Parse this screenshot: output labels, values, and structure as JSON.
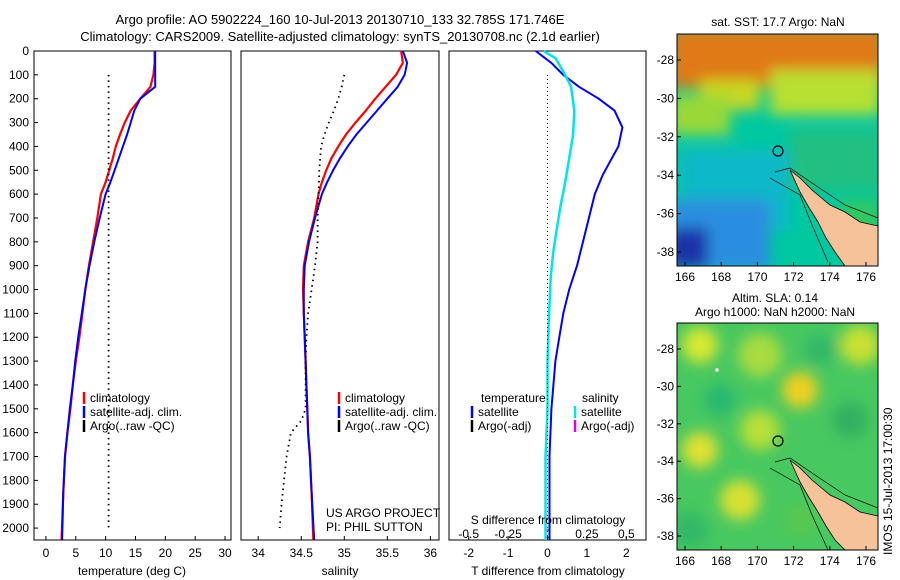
{
  "title_line1": "Argo profile: AO 5902224_160 10-Jul-2013 20130710_133 32.785S 171.746E",
  "title_line2": "Climatology: CARS2009. Satellite-adjusted climatology: synTS_20130708.nc (2.1d earlier)",
  "footer_text": "US ARGO PROJECT",
  "pi_text": "PI: PHIL SUTTON",
  "side_label": "IMOS 15-Jul-2013 17:00:30",
  "map_top_title": "sat. SST: 17.7 Argo: NaN",
  "map_bottom_title1": "Altim. SLA: 0.14",
  "map_bottom_title2": "Argo h1000: NaN h2000: NaN",
  "colors": {
    "climatology": "#ff0000",
    "satellite_adj": "#0000ff",
    "argo": "#000000",
    "salinity_sat": "#00e5e5",
    "salinity_argo": "#e000e0",
    "land": "#f5c29a"
  },
  "chart_data": [
    {
      "type": "line",
      "xlabel": "temperature (deg C)",
      "ylabel": "",
      "xlim": [
        -2,
        31
      ],
      "ylim": [
        2050,
        0
      ],
      "xticks": [
        0,
        5,
        10,
        15,
        20,
        25,
        30
      ],
      "yticks": [
        0,
        100,
        200,
        300,
        400,
        500,
        600,
        700,
        800,
        900,
        1000,
        1100,
        1200,
        1300,
        1400,
        1500,
        1600,
        1700,
        1800,
        1900,
        2000
      ],
      "legend": [
        "climatology",
        "satellite-adj. clim.",
        "Argo(..raw -QC)"
      ],
      "series": [
        {
          "name": "climatology",
          "x": [
            18.2,
            18.2,
            18.0,
            17.5,
            15.8,
            14.2,
            13.2,
            12.4,
            11.7,
            11.2,
            10.6,
            10.0,
            9.2,
            8.6,
            7.9,
            7.2,
            6.6,
            6.1,
            5.6,
            5.0,
            4.5,
            4.1,
            3.6,
            3.2,
            2.9,
            2.6
          ],
          "y": [
            0,
            50,
            100,
            150,
            200,
            250,
            300,
            350,
            400,
            450,
            500,
            550,
            600,
            700,
            800,
            900,
            1000,
            1100,
            1200,
            1300,
            1400,
            1500,
            1600,
            1700,
            1850,
            2050
          ]
        },
        {
          "name": "satellite-adj. clim.",
          "x": [
            18.3,
            18.3,
            18.3,
            18.3,
            15.8,
            14.8,
            14.2,
            13.6,
            12.9,
            12.2,
            11.5,
            10.8,
            10.0,
            9.0,
            8.1,
            7.3,
            6.6,
            6.0,
            5.4,
            4.9,
            4.5,
            4.0,
            3.6,
            3.2,
            2.9,
            2.7
          ],
          "y": [
            0,
            50,
            100,
            150,
            200,
            250,
            300,
            350,
            400,
            450,
            500,
            550,
            600,
            700,
            800,
            900,
            1000,
            1100,
            1200,
            1300,
            1400,
            1500,
            1600,
            1700,
            1850,
            2050
          ]
        },
        {
          "name": "Argo(..raw -QC)",
          "x": [
            10.5,
            10.5
          ],
          "y": [
            100,
            2000
          ]
        }
      ]
    },
    {
      "type": "line",
      "xlabel": "salinity",
      "ylabel": "",
      "xlim": [
        33.8,
        36.1
      ],
      "ylim": [
        2050,
        0
      ],
      "xticks": [
        34,
        34.5,
        35,
        35.5,
        36
      ],
      "legend": [
        "climatology",
        "satellite-adj. clim.",
        "Argo(..raw -QC)"
      ],
      "series": [
        {
          "name": "climatology",
          "x": [
            35.66,
            35.68,
            35.6,
            35.48,
            35.36,
            35.25,
            35.13,
            35.02,
            34.93,
            34.85,
            34.79,
            34.74,
            34.7,
            34.65,
            34.58,
            34.53,
            34.52,
            34.53,
            34.54,
            34.55,
            34.56,
            34.57,
            34.58,
            34.6,
            34.62,
            34.64
          ],
          "y": [
            0,
            50,
            100,
            150,
            200,
            250,
            300,
            350,
            400,
            450,
            500,
            550,
            600,
            700,
            800,
            900,
            1000,
            1100,
            1200,
            1300,
            1400,
            1500,
            1600,
            1700,
            1850,
            2050
          ]
        },
        {
          "name": "satellite-adj. clim.",
          "x": [
            35.68,
            35.73,
            35.7,
            35.62,
            35.5,
            35.38,
            35.26,
            35.14,
            35.04,
            34.95,
            34.87,
            34.8,
            34.74,
            34.66,
            34.59,
            34.54,
            34.53,
            34.53,
            34.54,
            34.55,
            34.56,
            34.57,
            34.58,
            34.6,
            34.62,
            34.65
          ],
          "y": [
            0,
            50,
            100,
            150,
            200,
            250,
            300,
            350,
            400,
            450,
            500,
            550,
            600,
            700,
            800,
            900,
            1000,
            1100,
            1200,
            1300,
            1400,
            1500,
            1600,
            1700,
            1850,
            2050
          ]
        },
        {
          "name": "Argo(..raw -QC)",
          "x": [
            35.0,
            34.97,
            34.93,
            34.88,
            34.82,
            34.77,
            34.73,
            34.71,
            34.7,
            34.69,
            34.69,
            34.66,
            34.62,
            34.58,
            34.56,
            34.55,
            34.55,
            34.5,
            34.38,
            34.33,
            34.3,
            34.27,
            34.25
          ],
          "y": [
            100,
            150,
            200,
            250,
            300,
            350,
            400,
            500,
            600,
            700,
            800,
            900,
            1000,
            1100,
            1200,
            1300,
            1500,
            1550,
            1600,
            1700,
            1800,
            1900,
            2000
          ]
        }
      ],
      "annotations": [
        "US ARGO PROJECT",
        "PI: PHIL SUTTON"
      ]
    },
    {
      "type": "line",
      "xlabel": "T difference from climatology",
      "xlabel_top": "S difference from climatology",
      "xlim": [
        -2.5,
        2.5
      ],
      "ylim": [
        2050,
        0
      ],
      "xticks": [
        -2,
        -1,
        0,
        1,
        2
      ],
      "xticks_top": [
        "-0.5",
        "-0.25",
        "0",
        "0.25",
        "0.5"
      ],
      "legend": {
        "temperature": [
          "satellite",
          "Argo(-adj)"
        ],
        "salinity": [
          "satellite",
          "Argo(-adj)"
        ]
      },
      "series": [
        {
          "name": "temperature satellite",
          "x": [
            -0.3,
            0.1,
            0.4,
            0.8,
            1.3,
            1.7,
            1.9,
            1.8,
            1.6,
            1.4,
            1.2,
            1.05,
            0.9,
            0.75,
            0.55,
            0.4,
            0.3,
            0.2,
            0.15,
            0.1,
            0.05,
            0.05,
            0.05
          ],
          "y": [
            0,
            50,
            100,
            150,
            200,
            250,
            320,
            400,
            460,
            520,
            600,
            700,
            800,
            900,
            1000,
            1100,
            1200,
            1300,
            1400,
            1500,
            1700,
            1900,
            2050
          ]
        },
        {
          "name": "salinity satellite",
          "x": [
            -0.1,
            0.2,
            0.38,
            0.6,
            0.68,
            0.65,
            0.55,
            0.45,
            0.33,
            0.23,
            0.14,
            0.08,
            0.04,
            0.0,
            0.0,
            -0.05,
            -0.05
          ],
          "y": [
            0,
            30,
            80,
            150,
            250,
            350,
            450,
            550,
            650,
            750,
            850,
            950,
            1100,
            1300,
            1500,
            1700,
            2050
          ]
        },
        {
          "name": "zero line",
          "x": [
            0,
            0
          ],
          "y": [
            100,
            2050
          ]
        }
      ]
    }
  ],
  "maps": {
    "top": {
      "xticks": [
        "166",
        "168",
        "170",
        "172",
        "174",
        "176"
      ],
      "yticks": [
        "-28",
        "-30",
        "-32",
        "-34",
        "-36",
        "-38"
      ]
    },
    "bottom": {
      "xticks": [
        "166",
        "168",
        "170",
        "172",
        "174",
        "176"
      ],
      "yticks": [
        "-28",
        "-30",
        "-32",
        "-34",
        "-36",
        "-38"
      ]
    }
  }
}
